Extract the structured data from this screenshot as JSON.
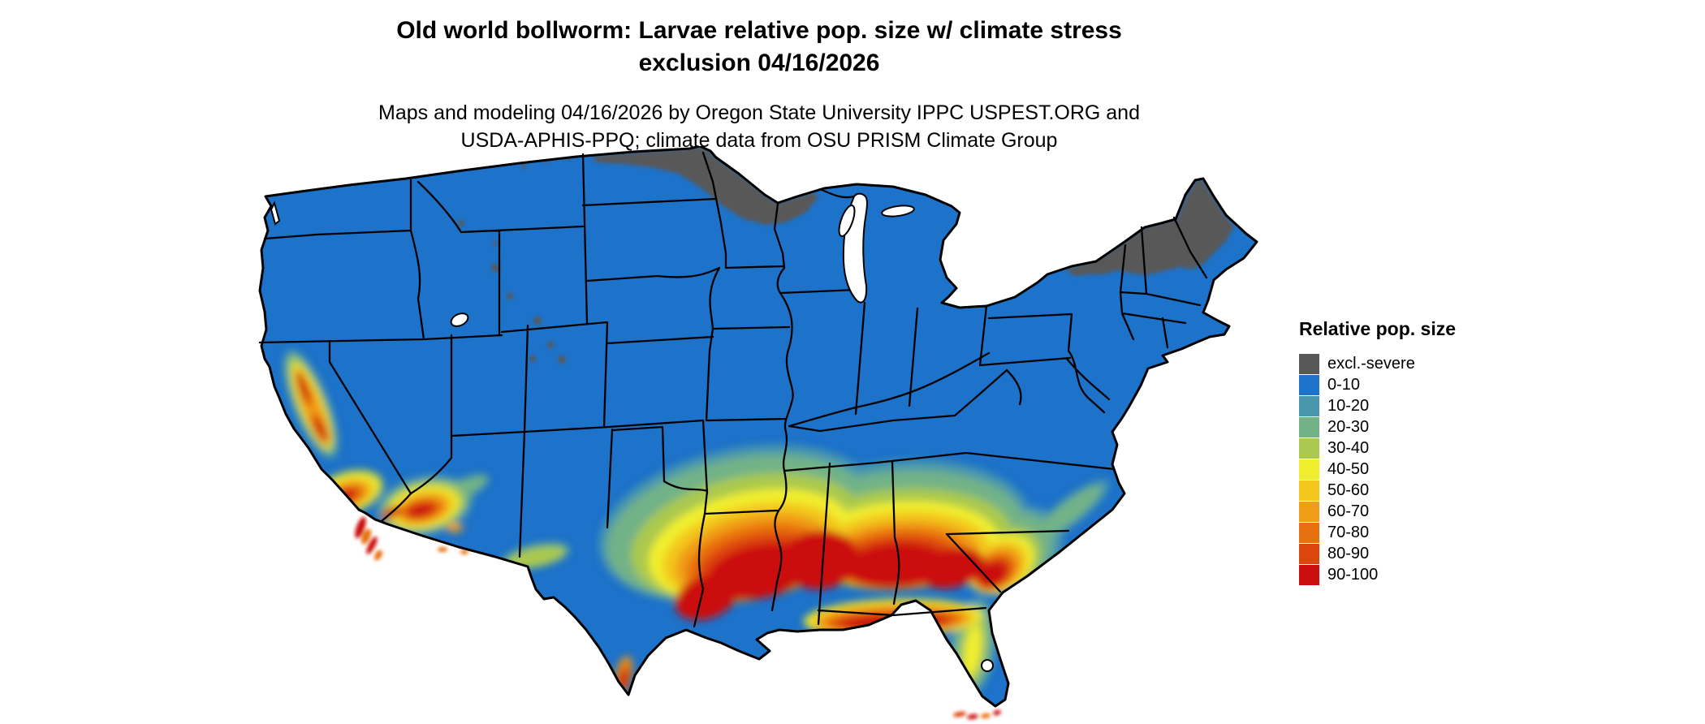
{
  "header": {
    "title": "Old world bollworm: Larvae relative pop. size w/ climate stress\nexclusion 04/16/2026",
    "subtitle": "Maps and modeling 04/16/2026 by Oregon State University IPPC USPEST.ORG and\nUSDA-APHIS-PPQ; climate data from OSU PRISM Climate Group"
  },
  "legend": {
    "title": "Relative pop. size",
    "items": [
      {
        "label": "excl.-severe",
        "color": "#585858"
      },
      {
        "label": "0-10",
        "color": "#1d72c9"
      },
      {
        "label": "10-20",
        "color": "#4897ad"
      },
      {
        "label": "20-30",
        "color": "#72b287"
      },
      {
        "label": "30-40",
        "color": "#abc94e"
      },
      {
        "label": "40-50",
        "color": "#f1ee2d"
      },
      {
        "label": "50-60",
        "color": "#f3c81e"
      },
      {
        "label": "60-70",
        "color": "#f09d18"
      },
      {
        "label": "70-80",
        "color": "#e8710f"
      },
      {
        "label": "80-90",
        "color": "#dc450c"
      },
      {
        "label": "90-100",
        "color": "#cb0f0e"
      }
    ]
  }
}
